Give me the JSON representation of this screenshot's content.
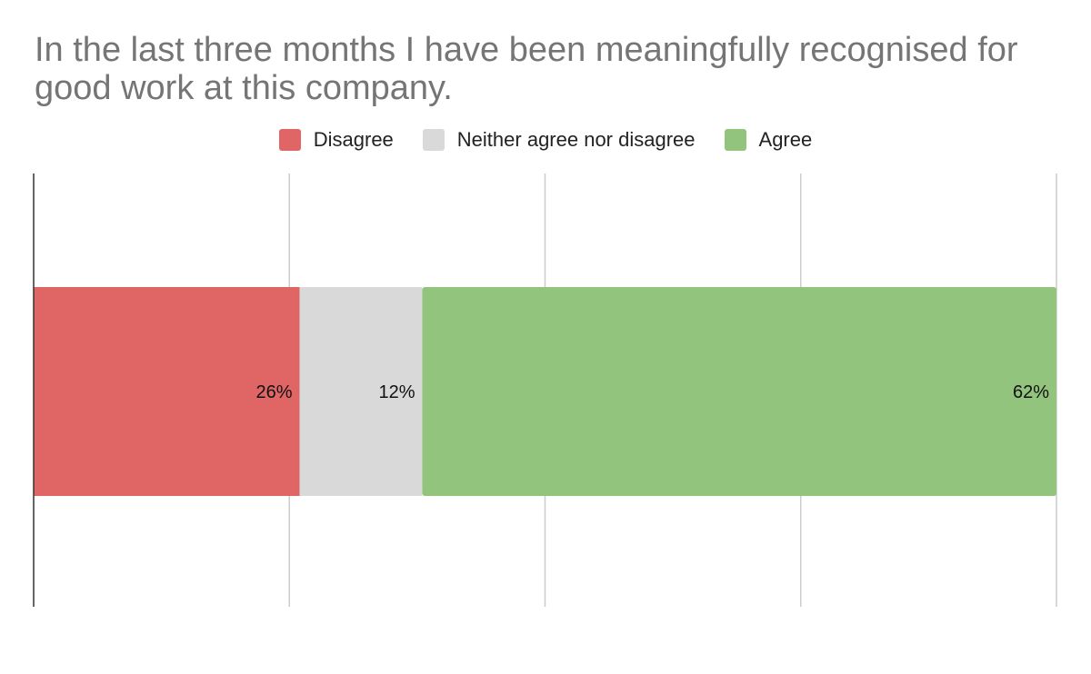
{
  "chart_data": {
    "type": "bar",
    "orientation": "horizontal",
    "stacked": true,
    "title": "In the last three months I have been meaningfully recognised for good work at this company.",
    "legend_position": "top",
    "xlim": [
      0,
      100
    ],
    "grid": true,
    "series": [
      {
        "name": "Disagree",
        "values": [
          26
        ],
        "label": "26%",
        "color": "#e06666"
      },
      {
        "name": "Neither agree nor disagree",
        "values": [
          12
        ],
        "label": "12%",
        "color": "#d9d9d9"
      },
      {
        "name": "Agree",
        "values": [
          62
        ],
        "label": "62%",
        "color": "#93c47d"
      }
    ]
  }
}
